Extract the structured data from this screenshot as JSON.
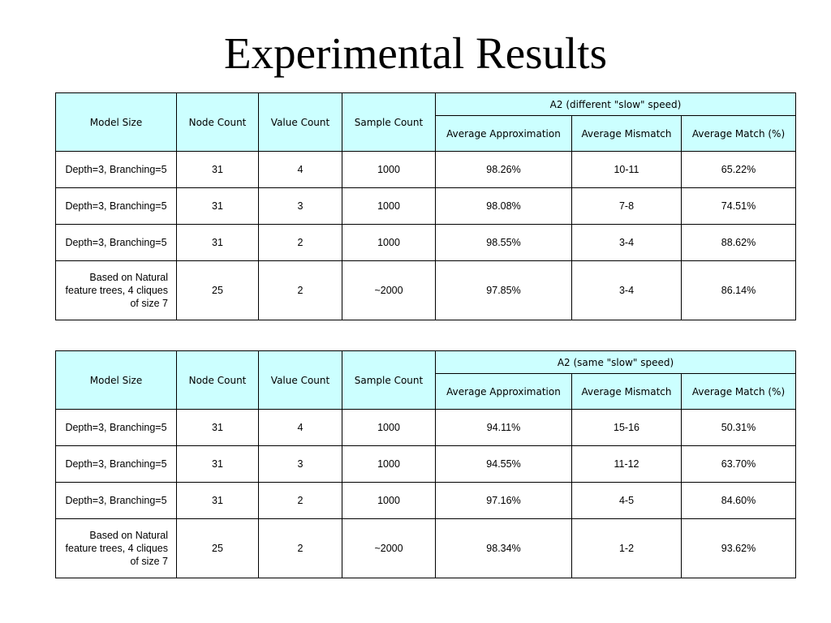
{
  "title": "Experimental Results",
  "tables": [
    {
      "group_header": "A2 (different \"slow\" speed)",
      "columns": {
        "model_size": "Model Size",
        "node_count": "Node Count",
        "value_count": "Value Count",
        "sample_count": "Sample Count",
        "avg_approx": "Average Approximation",
        "avg_mismatch": "Average Mismatch",
        "avg_match": "Average Match (%)"
      },
      "rows": [
        {
          "model": "Depth=3, Branching=5",
          "nodes": "31",
          "values": "4",
          "samples": "1000",
          "approx": "98.26%",
          "mismatch": "10-11",
          "match": "65.22%"
        },
        {
          "model": "Depth=3, Branching=5",
          "nodes": "31",
          "values": "3",
          "samples": "1000",
          "approx": "98.08%",
          "mismatch": "7-8",
          "match": "74.51%"
        },
        {
          "model": "Depth=3, Branching=5",
          "nodes": "31",
          "values": "2",
          "samples": "1000",
          "approx": "98.55%",
          "mismatch": "3-4",
          "match": "88.62%"
        },
        {
          "model": "Based on Natural feature trees, 4 cliques of size 7",
          "nodes": "25",
          "values": "2",
          "samples": "~2000",
          "approx": "97.85%",
          "mismatch": "3-4",
          "match": "86.14%"
        }
      ]
    },
    {
      "group_header": "A2 (same \"slow\" speed)",
      "columns": {
        "model_size": "Model Size",
        "node_count": "Node Count",
        "value_count": "Value Count",
        "sample_count": "Sample Count",
        "avg_approx": "Average Approximation",
        "avg_mismatch": "Average Mismatch",
        "avg_match": "Average Match (%)"
      },
      "rows": [
        {
          "model": "Depth=3, Branching=5",
          "nodes": "31",
          "values": "4",
          "samples": "1000",
          "approx": "94.11%",
          "mismatch": "15-16",
          "match": "50.31%"
        },
        {
          "model": "Depth=3, Branching=5",
          "nodes": "31",
          "values": "3",
          "samples": "1000",
          "approx": "94.55%",
          "mismatch": "11-12",
          "match": "63.70%"
        },
        {
          "model": "Depth=3, Branching=5",
          "nodes": "31",
          "values": "2",
          "samples": "1000",
          "approx": "97.16%",
          "mismatch": "4-5",
          "match": "84.60%"
        },
        {
          "model": "Based on Natural feature trees, 4 cliques of size 7",
          "nodes": "25",
          "values": "2",
          "samples": "~2000",
          "approx": "98.34%",
          "mismatch": "1-2",
          "match": "93.62%"
        }
      ]
    }
  ],
  "colors": {
    "header_fill": "#ccffff",
    "border": "#000000",
    "background": "#ffffff"
  }
}
